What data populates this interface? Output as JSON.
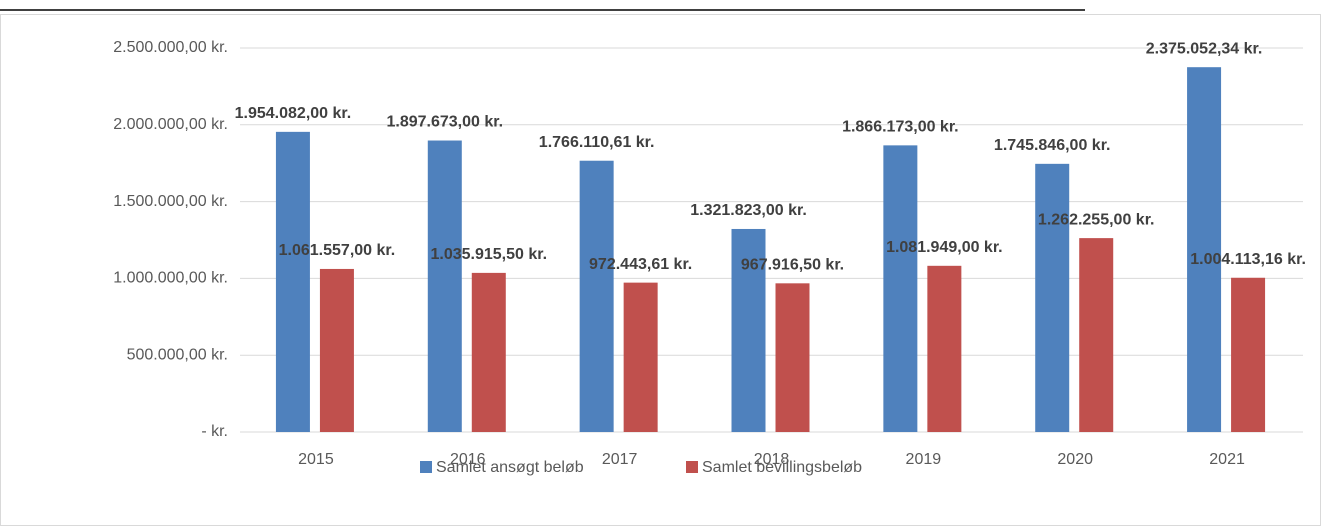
{
  "chart_data": {
    "type": "bar",
    "categories": [
      "2015",
      "2016",
      "2017",
      "2018",
      "2019",
      "2020",
      "2021"
    ],
    "series": [
      {
        "name": "Samlet ansøgt beløb",
        "color": "#4f81bd",
        "values": [
          1954082,
          1897673,
          1766110.61,
          1321823,
          1866173,
          1745846,
          2375052.34
        ],
        "value_labels": [
          "1.954.082,00 kr.",
          "1.897.673,00 kr.",
          "1.766.110,61 kr.",
          "1.321.823,00 kr.",
          "1.866.173,00 kr.",
          "1.745.846,00 kr.",
          "2.375.052,34 kr."
        ]
      },
      {
        "name": "Samlet bevillingsbeløb",
        "color": "#c0504d",
        "values": [
          1061557,
          1035915.5,
          972443.61,
          967916.5,
          1081949,
          1262255,
          1004113.16
        ],
        "value_labels": [
          "1.061.557,00 kr.",
          "1.035.915,50 kr.",
          "972.443,61 kr.",
          "967.916,50 kr.",
          "1.081.949,00 kr.",
          "1.262.255,00 kr.",
          "1.004.113,16 kr."
        ]
      }
    ],
    "ylim": [
      0,
      2500000
    ],
    "yticks": [
      {
        "value": 0,
        "label": "-  kr."
      },
      {
        "value": 500000,
        "label": "500.000,00 kr."
      },
      {
        "value": 1000000,
        "label": "1.000.000,00 kr."
      },
      {
        "value": 1500000,
        "label": "1.500.000,00 kr."
      },
      {
        "value": 2000000,
        "label": "2.000.000,00 kr."
      },
      {
        "value": 2500000,
        "label": "2.500.000,00 kr."
      }
    ],
    "grid": true,
    "legend": "bottom"
  }
}
